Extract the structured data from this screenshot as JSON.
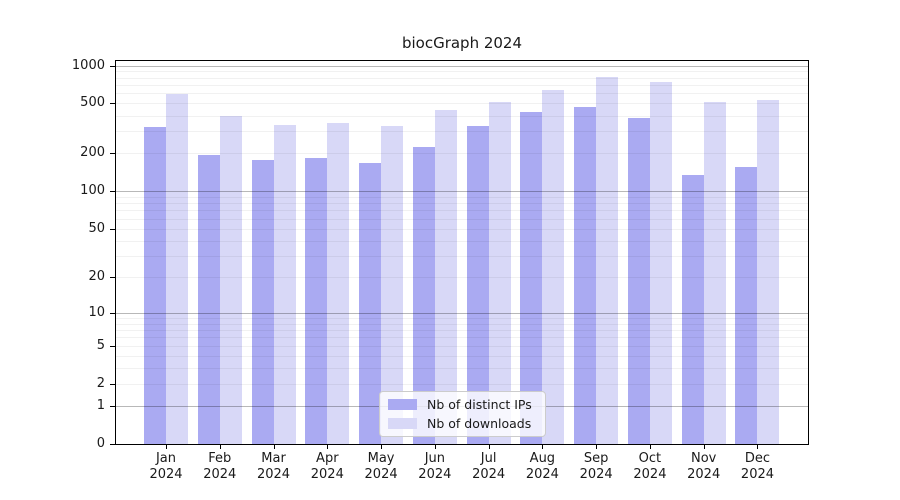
{
  "window": {
    "title": "biocGraph 2024"
  },
  "chart_data": {
    "type": "bar",
    "title": "biocGraph 2024",
    "x_categories": [
      "Jan",
      "Feb",
      "Mar",
      "Apr",
      "May",
      "Jun",
      "Jul",
      "Aug",
      "Sep",
      "Oct",
      "Nov",
      "Dec"
    ],
    "x_year": "2024",
    "y_scale": "log1p",
    "ylim": [
      0,
      1126
    ],
    "y_ticks": [
      0,
      1,
      2,
      5,
      10,
      20,
      50,
      100,
      200,
      500,
      1000
    ],
    "y_gridlines_dark": [
      1,
      10,
      100,
      1000
    ],
    "y_gridlines_light": [
      2,
      3,
      4,
      5,
      6,
      7,
      8,
      9,
      20,
      30,
      40,
      50,
      60,
      70,
      80,
      90,
      200,
      300,
      400,
      500,
      600,
      700,
      800,
      900
    ],
    "grid": true,
    "legend_position": "lower center",
    "series": [
      {
        "name": "Nb of distinct IPs",
        "color": "#aaaaf2",
        "values": [
          325,
          195,
          178,
          185,
          167,
          225,
          330,
          425,
          465,
          385,
          135,
          155
        ]
      },
      {
        "name": "Nb of downloads",
        "color": "#d8d8f7",
        "values": [
          600,
          395,
          340,
          350,
          330,
          440,
          515,
          640,
          810,
          745,
          510,
          530
        ]
      }
    ]
  }
}
